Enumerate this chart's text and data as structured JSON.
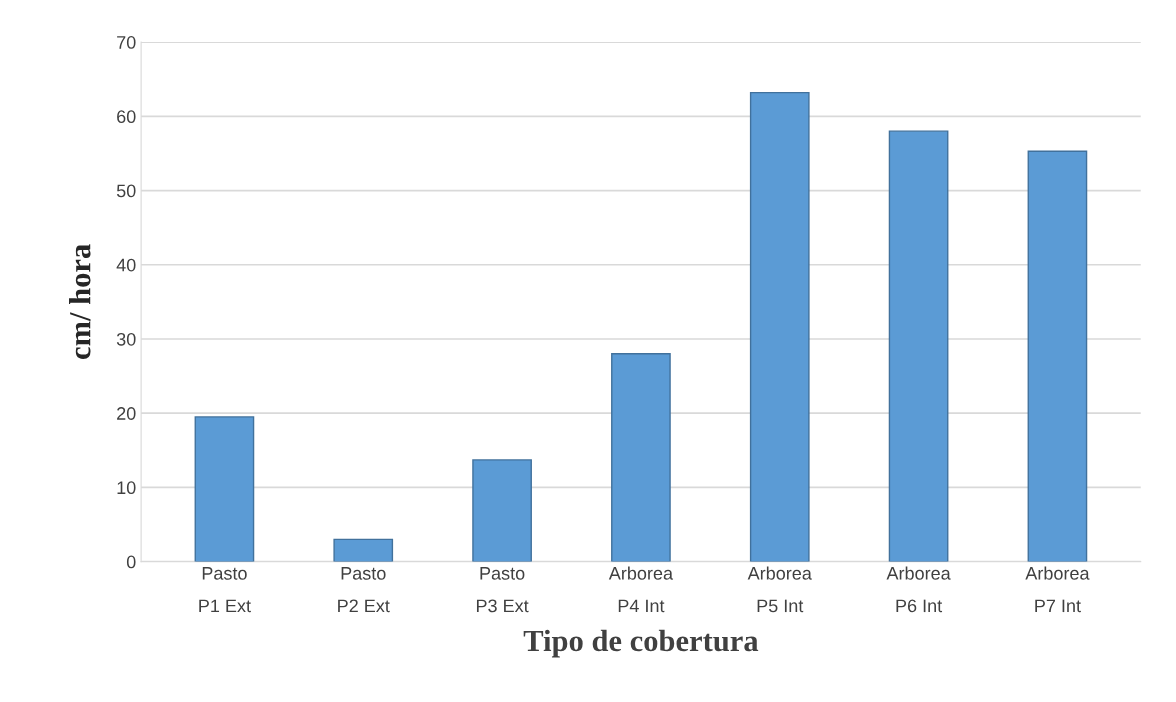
{
  "chart_data": {
    "type": "bar",
    "xlabel": "Tipo de cobertura",
    "ylabel": "cm/ hora",
    "categories": [
      "Pasto\nP1 Ext",
      "Pasto\nP2 Ext",
      "Pasto\nP3 Ext",
      "Arborea\nP4 Int",
      "Arborea\nP5 Int",
      "Arborea\nP6 Int",
      "Arborea\nP7 Int"
    ],
    "values": [
      19.5,
      3,
      13.7,
      28,
      63.2,
      58,
      55.3
    ],
    "color": "#5b9bd5",
    "ylim": [
      0,
      70
    ],
    "yticks": [
      0,
      10,
      20,
      30,
      40,
      50,
      60,
      70
    ],
    "grid": "y"
  }
}
